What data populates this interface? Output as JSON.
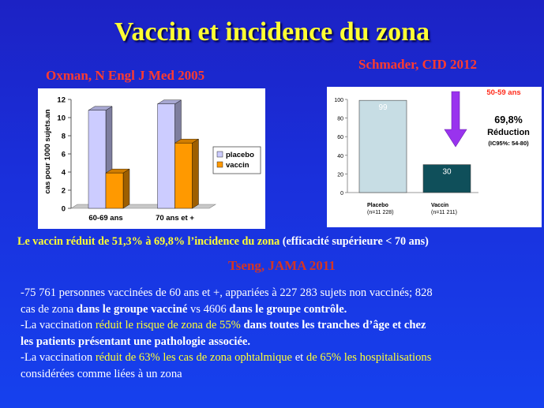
{
  "slide": {
    "title": "Vaccin et incidence du zona",
    "ref_oxman": "Oxman, N Engl J Med 2005",
    "ref_schmader": "Schmader, CID 2012",
    "ref_tseng": "Tseng, JAMA 2011",
    "summary_hl": "Le vaccin réduit de 51,3% à 69,8% l’incidence du zona",
    "summary_rest": " (efficacité supérieure < 70 ans)",
    "body": {
      "l1": "-75 761 personnes vaccinées de 60 ans et +, appariées à 227 283 sujets non vaccinés; 828",
      "l2a": "cas de zona ",
      "l2b": "dans le groupe vacciné",
      "l2c": " vs  4606 ",
      "l2d": "dans le groupe contrôle.",
      "l3a": "-La vaccination ",
      "l3b": "réduit  le risque de zona de 55%",
      "l3c": " dans toutes les tranches d’âge et chez",
      "l4": "les patients présentant une pathologie associée.",
      "l5a": "-La vaccination ",
      "l5b": "réduit  de 63% les cas de zona ophtalmique",
      "l5c": " et ",
      "l5d": "de 65% les hospitalisations",
      "l6": "considérées comme liées à un zona"
    }
  },
  "chart_data": [
    {
      "type": "bar",
      "title": "",
      "ylabel": "cas pour 1000 sujets.an",
      "categories": [
        "60-69 ans",
        "70 ans et +"
      ],
      "series": [
        {
          "name": "placebo",
          "values": [
            10.8,
            11.5
          ],
          "color": "#ccccff"
        },
        {
          "name": "vaccin",
          "values": [
            3.9,
            7.2
          ],
          "color": "#ff9900"
        }
      ],
      "ylim": [
        0,
        12
      ],
      "yticks": [
        "0",
        "2",
        "4",
        "6",
        "8",
        "10",
        "12"
      ],
      "legend": "right",
      "grid": false
    },
    {
      "type": "bar",
      "title": "",
      "categories": [
        "Placebo",
        "Vaccin"
      ],
      "category_sublabels": [
        "(n=11 228)",
        "(n=11 211)"
      ],
      "values": [
        99,
        30
      ],
      "data_labels": [
        "99",
        "30"
      ],
      "colors": [
        "#c7dde4",
        "#0f4f5a"
      ],
      "ylim": [
        0,
        100
      ],
      "yticks": [
        "0",
        "20",
        "40",
        "60",
        "80",
        "100"
      ],
      "annotation_age": "50-59 ans",
      "annotation_pct": "69,8%",
      "annotation_label": "Réduction",
      "annotation_ci": "(IC95%:  54-80)",
      "arrow_color": "#9933ee",
      "grid": false
    }
  ]
}
